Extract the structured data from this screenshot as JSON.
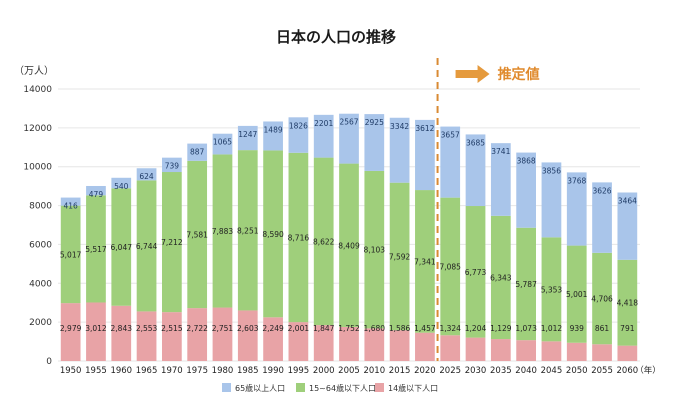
{
  "chart_data": {
    "type": "bar",
    "stacked": true,
    "title": "日本の人口の推移",
    "ylabel": "（万人）",
    "x_unit": "（年）",
    "ylim": [
      0,
      14000
    ],
    "yticks": [
      0,
      2000,
      4000,
      6000,
      8000,
      10000,
      12000,
      14000
    ],
    "categories": [
      "1950",
      "1955",
      "1960",
      "1965",
      "1970",
      "1975",
      "1980",
      "1985",
      "1990",
      "1995",
      "2000",
      "2005",
      "2010",
      "2015",
      "2020",
      "2025",
      "2030",
      "2035",
      "2040",
      "2045",
      "2050",
      "2055",
      "2060"
    ],
    "series": [
      {
        "name": "14歳以下人口",
        "color": "#e8a3a6",
        "values": [
          2979,
          3012,
          2843,
          2553,
          2515,
          2722,
          2751,
          2603,
          2249,
          2001,
          1847,
          1752,
          1680,
          1586,
          1457,
          1324,
          1204,
          1129,
          1073,
          1012,
          939,
          861,
          791
        ]
      },
      {
        "name": "15~64歳以下人口",
        "color": "#9fcf7b",
        "values": [
          5017,
          5517,
          6047,
          6744,
          7212,
          7581,
          7883,
          8251,
          8590,
          8716,
          8622,
          8409,
          8103,
          7592,
          7341,
          7085,
          6773,
          6343,
          5787,
          5353,
          5001,
          4706,
          4418
        ]
      },
      {
        "name": "65歳以上人口",
        "color": "#a9c5ea",
        "values": [
          416,
          479,
          540,
          624,
          739,
          887,
          1065,
          1247,
          1489,
          1826,
          2201,
          2567,
          2925,
          3342,
          3612,
          3657,
          3685,
          3741,
          3868,
          3856,
          3768,
          3626,
          3464
        ]
      }
    ],
    "projection": {
      "label": "推定値",
      "start_after": "2020"
    },
    "legend_position": "bottom"
  }
}
